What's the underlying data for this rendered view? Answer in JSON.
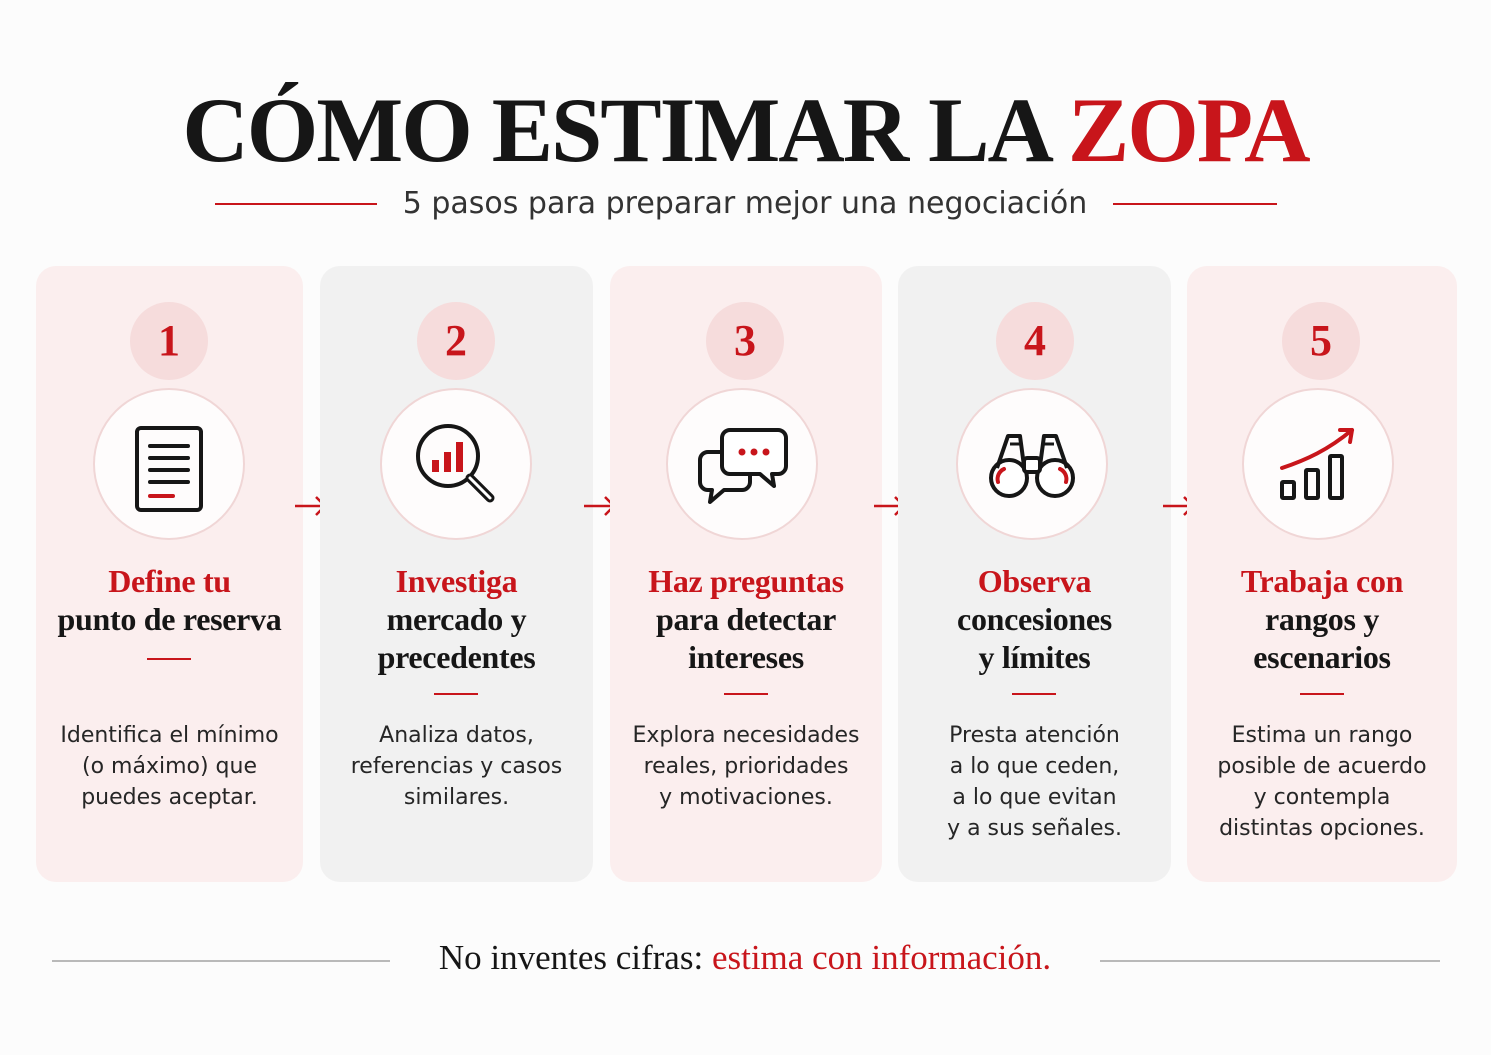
{
  "title": {
    "main": "CÓMO ESTIMAR LA",
    "accent": "ZOPA"
  },
  "subtitle": "5 pasos para preparar mejor una negociación",
  "steps": [
    {
      "number": "1",
      "icon": "document-icon",
      "heading_red": [
        "Define tu"
      ],
      "heading_black": [
        "punto de reserva"
      ],
      "desc": [
        "Identifica el mínimo",
        "(o máximo) que",
        "puedes aceptar."
      ]
    },
    {
      "number": "2",
      "icon": "magnifier-chart-icon",
      "heading_red": [
        "Investiga"
      ],
      "heading_black": [
        "mercado y",
        "precedentes"
      ],
      "desc": [
        "Analiza datos,",
        "referencias y casos",
        "similares."
      ]
    },
    {
      "number": "3",
      "icon": "chat-bubbles-icon",
      "heading_red": [
        "Haz preguntas"
      ],
      "heading_black": [
        "para detectar",
        "intereses"
      ],
      "desc": [
        "Explora necesidades",
        "reales, prioridades",
        "y motivaciones."
      ]
    },
    {
      "number": "4",
      "icon": "binoculars-icon",
      "heading_red": [
        "Observa"
      ],
      "heading_black": [
        "concesiones",
        "y límites"
      ],
      "desc": [
        "Presta atención",
        "a lo que ceden,",
        "a lo que evitan",
        "y a sus señales."
      ]
    },
    {
      "number": "5",
      "icon": "growth-chart-icon",
      "heading_red": [
        "Trabaja con"
      ],
      "heading_black": [
        "rangos y",
        "escenarios"
      ],
      "desc": [
        "Estima un rango",
        "posible de acuerdo",
        "y contempla",
        "distintas opciones."
      ]
    }
  ],
  "footer": {
    "text": "No inventes cifras:",
    "accent": "estima con información."
  },
  "colors": {
    "accent": "#c8151b",
    "ink": "#161616",
    "card_pink": "#fbeeee",
    "card_gray": "#f1f1f1"
  }
}
